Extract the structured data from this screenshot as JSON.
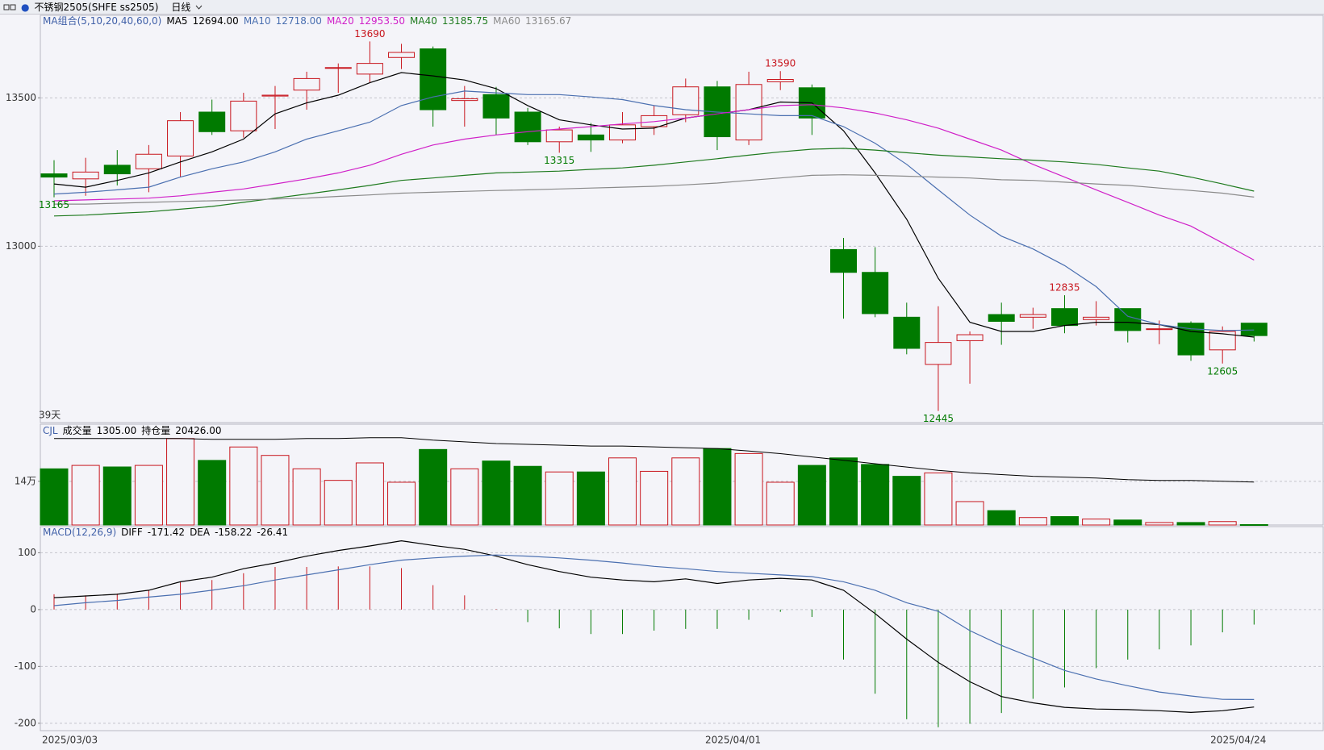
{
  "header": {
    "symbol": "不锈钢2505(SHFE ss2505)",
    "period": "日线"
  },
  "chart_data": [
    {
      "type": "candlestick",
      "indicator_label": "MA组合(5,10,20,40,60,0)",
      "period_label": "39天",
      "open": [
        13244,
        13227,
        13273,
        13261,
        13304,
        13452,
        13389,
        13506,
        13526,
        13600,
        13580,
        13636,
        13665,
        13491,
        13511,
        13452,
        13352,
        13375,
        13358,
        13403,
        13443,
        13537,
        13358,
        13554,
        13534,
        12989,
        12912,
        12761,
        12602,
        12682,
        12770,
        12761,
        12790,
        12753,
        12790,
        12722,
        12741,
        12651,
        12741
      ],
      "high": [
        13290,
        13298,
        13324,
        13341,
        13452,
        13494,
        13517,
        13540,
        13588,
        13616,
        13690,
        13682,
        13673,
        13540,
        13537,
        13466,
        13403,
        13415,
        13452,
        13474,
        13565,
        13557,
        13588,
        13590,
        13545,
        13028,
        12997,
        12810,
        12798,
        12713,
        12810,
        12793,
        12835,
        12815,
        12790,
        12750,
        12747,
        12730,
        12741
      ],
      "low": [
        13165,
        13170,
        13205,
        13182,
        13233,
        13375,
        13366,
        13395,
        13460,
        13517,
        13551,
        13597,
        13403,
        13403,
        13375,
        13341,
        13315,
        13318,
        13347,
        13375,
        13418,
        13324,
        13341,
        13526,
        13375,
        12756,
        12761,
        12636,
        12445,
        12537,
        12668,
        12722,
        12707,
        12733,
        12676,
        12670,
        12614,
        12605,
        12679
      ],
      "close": [
        13233,
        13250,
        13244,
        13310,
        13423,
        13386,
        13489,
        13509,
        13565,
        13602,
        13616,
        13653,
        13460,
        13497,
        13432,
        13352,
        13392,
        13358,
        13409,
        13440,
        13537,
        13369,
        13545,
        13562,
        13432,
        12912,
        12773,
        12656,
        12676,
        12702,
        12747,
        12770,
        12733,
        12761,
        12716,
        12722,
        12634,
        12713,
        12699
      ],
      "up_color": "#c8161e",
      "down_color": "#007a00",
      "extreme_labels": [
        13165,
        13690,
        13315,
        13590,
        12445,
        12835,
        12605
      ],
      "ylim": [
        12406,
        13778
      ],
      "yticks": [
        13000,
        13500
      ],
      "grid": true,
      "series": [
        {
          "name": "MA5",
          "legend_value": "12694.00",
          "color": "#000000",
          "values": [
            13210,
            13199,
            13222,
            13247,
            13284,
            13318,
            13361,
            13446,
            13483,
            13509,
            13551,
            13585,
            13574,
            13560,
            13531,
            13474,
            13426,
            13409,
            13395,
            13398,
            13432,
            13446,
            13460,
            13486,
            13483,
            13389,
            13247,
            13091,
            12892,
            12744,
            12713,
            12713,
            12733,
            12744,
            12744,
            12736,
            12713,
            12705,
            12694
          ]
        },
        {
          "name": "MA10",
          "legend_value": "12718.00",
          "color": "#4a6fb0",
          "values": [
            13176,
            13182,
            13190,
            13199,
            13233,
            13261,
            13284,
            13318,
            13361,
            13389,
            13418,
            13474,
            13503,
            13523,
            13517,
            13511,
            13511,
            13503,
            13494,
            13474,
            13460,
            13452,
            13446,
            13440,
            13440,
            13403,
            13347,
            13276,
            13190,
            13105,
            13034,
            12991,
            12935,
            12864,
            12764,
            12736,
            12722,
            12716,
            12718
          ]
        },
        {
          "name": "MA20",
          "legend_value": "12953.50",
          "color": "#d020c8",
          "values": [
            13153,
            13156,
            13159,
            13162,
            13170,
            13182,
            13193,
            13210,
            13227,
            13247,
            13273,
            13310,
            13341,
            13361,
            13375,
            13386,
            13395,
            13403,
            13412,
            13420,
            13432,
            13446,
            13460,
            13474,
            13477,
            13466,
            13449,
            13426,
            13398,
            13361,
            13324,
            13276,
            13233,
            13190,
            13148,
            13105,
            13068,
            13011,
            12953.5
          ]
        },
        {
          "name": "MA40",
          "legend_value": "13185.75",
          "color": "#1e7a1e",
          "values": [
            13102,
            13105,
            13111,
            13116,
            13125,
            13134,
            13148,
            13162,
            13176,
            13190,
            13205,
            13222,
            13230,
            13239,
            13247,
            13250,
            13253,
            13259,
            13264,
            13273,
            13284,
            13295,
            13307,
            13318,
            13327,
            13330,
            13324,
            13315,
            13307,
            13301,
            13295,
            13290,
            13284,
            13276,
            13264,
            13253,
            13233,
            13210,
            13185.75
          ]
        },
        {
          "name": "MA60",
          "legend_value": "13165.67",
          "color": "#8a8a8a",
          "values": [
            13142,
            13142,
            13145,
            13148,
            13151,
            13153,
            13156,
            13159,
            13162,
            13168,
            13173,
            13179,
            13182,
            13185,
            13188,
            13190,
            13193,
            13196,
            13199,
            13202,
            13207,
            13213,
            13222,
            13230,
            13239,
            13241,
            13239,
            13236,
            13233,
            13230,
            13224,
            13222,
            13216,
            13210,
            13205,
            13196,
            13188,
            13179,
            13165.67
          ]
        }
      ]
    },
    {
      "type": "bar",
      "indicator_label": "CJL",
      "ylim": [
        0,
        323000
      ],
      "yticks": [
        {
          "value": 140000,
          "label": "14万"
        }
      ],
      "y2lim": [
        0,
        48000
      ],
      "grid": true,
      "series": [
        {
          "name": "成交量",
          "legend_value": "1305.00",
          "values": [
            180000,
            191000,
            186000,
            191000,
            277000,
            207000,
            250000,
            223000,
            180000,
            143000,
            199000,
            137000,
            242000,
            180000,
            205000,
            188000,
            170000,
            170000,
            215000,
            172000,
            215000,
            245000,
            229000,
            137000,
            191000,
            215000,
            194000,
            156000,
            167000,
            75000,
            46000,
            24000,
            27000,
            19000,
            16000,
            8000,
            8000,
            11000,
            1305
          ]
        },
        {
          "name": "持仓量",
          "legend_value": "20426.00",
          "axis": "y2",
          "color": "#000000",
          "values": [
            41200,
            41200,
            41200,
            41200,
            41200,
            40800,
            40800,
            40800,
            41200,
            41200,
            41600,
            41600,
            40400,
            39600,
            38800,
            38400,
            38000,
            37600,
            37600,
            37200,
            36800,
            36400,
            35200,
            34000,
            32400,
            30800,
            29200,
            27600,
            26000,
            24800,
            24000,
            23200,
            22800,
            22400,
            21600,
            21200,
            21200,
            20800,
            20426
          ]
        }
      ]
    },
    {
      "type": "line",
      "indicator_label": "MACD(12,26,9)",
      "categories": [
        "2025/03/03",
        null,
        null,
        null,
        null,
        null,
        null,
        null,
        null,
        null,
        null,
        null,
        null,
        null,
        null,
        null,
        null,
        null,
        null,
        null,
        null,
        "2025/04/01",
        null,
        null,
        null,
        null,
        null,
        null,
        null,
        null,
        null,
        null,
        null,
        null,
        null,
        null,
        null,
        "2025/04/24",
        null
      ],
      "ylim": [
        -213,
        146
      ],
      "yticks": [
        -200,
        -100,
        0,
        100
      ],
      "grid": true,
      "histogram": {
        "legend_value": "-26.41",
        "values": [
          27,
          25,
          28,
          34,
          49,
          52,
          64,
          75,
          75,
          76,
          76,
          73,
          43,
          25,
          1,
          -22,
          -33,
          -43,
          -43,
          -37,
          -34,
          -34,
          -18,
          -4,
          -13,
          -88,
          -148,
          -193,
          -207,
          -201,
          -182,
          -157,
          -137,
          -103,
          -88,
          -70,
          -63,
          -40,
          -26.41
        ]
      },
      "series": [
        {
          "name": "DIFF",
          "legend_value": "-171.42",
          "color": "#000000",
          "values": [
            21,
            24,
            27,
            34,
            49,
            57,
            72,
            82,
            94,
            104,
            112,
            121,
            113,
            106,
            94,
            79,
            67,
            57,
            52,
            49,
            54,
            46,
            52,
            55,
            52,
            34,
            -7,
            -52,
            -93,
            -127,
            -153,
            -164,
            -172,
            -175,
            -176,
            -178,
            -181,
            -178,
            -171.42
          ]
        },
        {
          "name": "DEA",
          "legend_value": "-158.22",
          "color": "#4a6fb0",
          "values": [
            7,
            12,
            16,
            22,
            27,
            34,
            42,
            52,
            61,
            70,
            79,
            87,
            91,
            94,
            96,
            94,
            91,
            87,
            82,
            76,
            72,
            67,
            64,
            61,
            58,
            49,
            34,
            12,
            -3,
            -37,
            -63,
            -85,
            -107,
            -122,
            -134,
            -145,
            -152,
            -158,
            -158.22
          ]
        }
      ]
    }
  ]
}
